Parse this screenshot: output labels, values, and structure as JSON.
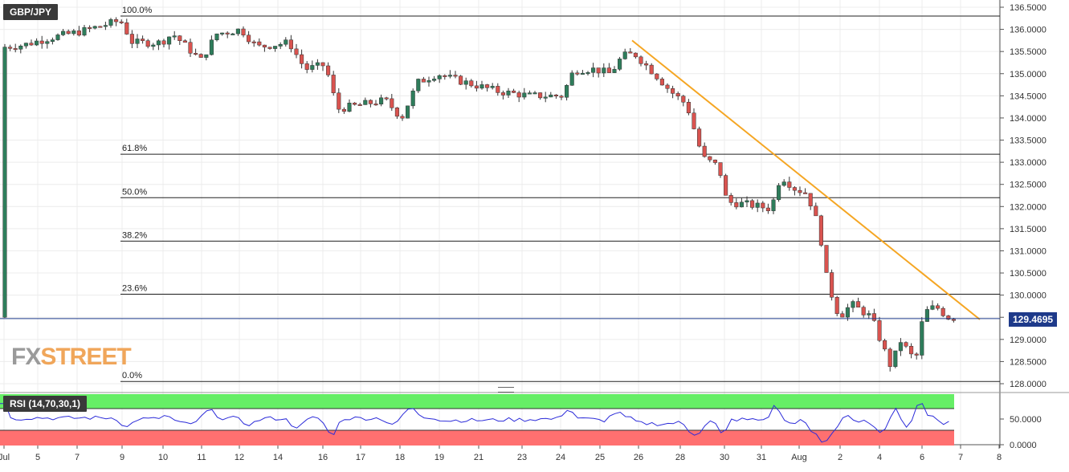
{
  "header": {
    "symbol": "GBP/JPY"
  },
  "watermark": {
    "part1": "FX",
    "part2": "STREET"
  },
  "current_price": "129.4695",
  "rsi_label": "RSI (14,70,30,1)",
  "colors": {
    "bull": "#2e7d5b",
    "bear": "#d9534f",
    "trend": "#f5a623",
    "rsi_line": "#2b2bd9",
    "overbought": "#66ee66",
    "oversold": "#ff7070",
    "price_line": "#1e3a8a"
  },
  "chart_data": {
    "type": "candlestick",
    "price_axis": {
      "min": 128.0,
      "max": 136.5,
      "ticks": [
        "128.0000",
        "128.5000",
        "129.0000",
        "129.5000",
        "130.0000",
        "130.5000",
        "131.0000",
        "131.5000",
        "132.0000",
        "132.5000",
        "133.0000",
        "133.5000",
        "134.0000",
        "134.5000",
        "135.0000",
        "135.5000",
        "136.0000",
        "136.5000"
      ]
    },
    "x_axis_labels": [
      "Jul",
      "5",
      "7",
      "9",
      "10",
      "11",
      "12",
      "14",
      "16",
      "17",
      "18",
      "19",
      "21",
      "23",
      "24",
      "25",
      "26",
      "28",
      "30",
      "31",
      "Aug",
      "2",
      "4",
      "6",
      "7",
      "8"
    ],
    "fibonacci": [
      {
        "label": "100.0%",
        "price": 136.3
      },
      {
        "label": "61.8%",
        "price": 133.18
      },
      {
        "label": "50.0%",
        "price": 132.2
      },
      {
        "label": "38.2%",
        "price": 131.22
      },
      {
        "label": "23.6%",
        "price": 130.02
      },
      {
        "label": "0.0%",
        "price": 128.05
      }
    ],
    "trendline": {
      "start": {
        "x": "Jul 25",
        "price": 135.75
      },
      "end": {
        "x": "Aug 7",
        "price": 129.45
      }
    },
    "last_price": 129.4695,
    "rsi": {
      "ticks": [
        "50.0000",
        "0.0000"
      ],
      "overbought": 70,
      "oversold": 30
    }
  }
}
